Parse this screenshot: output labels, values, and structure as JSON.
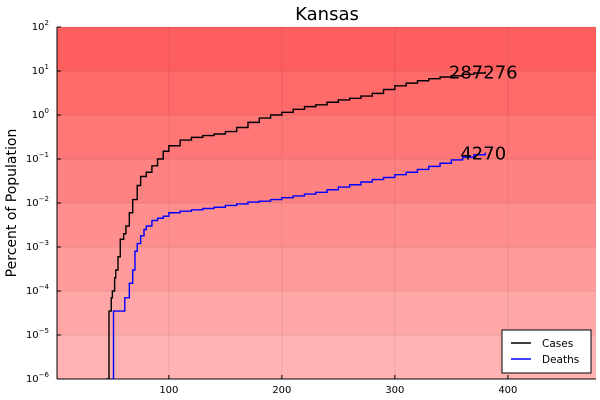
{
  "chart_data": {
    "type": "line",
    "title": "Kansas",
    "xlabel": "",
    "ylabel": "Percent of Population",
    "yscale": "log",
    "xlim": [
      1,
      478
    ],
    "ylim": [
      1e-06,
      100
    ],
    "grid": true,
    "background": "red gradient (darker at top)",
    "x_ticks": [
      100,
      200,
      300,
      400
    ],
    "y_ticks": [
      {
        "value": 1e-06,
        "base": "10",
        "exp": "−6"
      },
      {
        "value": 1e-05,
        "base": "10",
        "exp": "−5"
      },
      {
        "value": 0.0001,
        "base": "10",
        "exp": "−4"
      },
      {
        "value": 0.001,
        "base": "10",
        "exp": "−3"
      },
      {
        "value": 0.01,
        "base": "10",
        "exp": "−2"
      },
      {
        "value": 0.1,
        "base": "10",
        "exp": "−1"
      },
      {
        "value": 1,
        "base": "10",
        "exp": "0"
      },
      {
        "value": 10,
        "base": "10",
        "exp": "1"
      },
      {
        "value": 100,
        "base": "10",
        "exp": "2"
      }
    ],
    "legend": {
      "placement": "bottom-right",
      "entries": [
        "Cases",
        "Deaths"
      ]
    },
    "series": [
      {
        "name": "Cases",
        "color": "#000000",
        "end_label": "287276",
        "x": [
          45,
          47,
          48,
          49,
          50,
          52,
          53,
          55,
          57,
          60,
          62,
          65,
          68,
          72,
          75,
          80,
          85,
          90,
          95,
          100,
          110,
          120,
          130,
          140,
          150,
          160,
          170,
          180,
          190,
          200,
          210,
          220,
          230,
          240,
          250,
          260,
          270,
          280,
          290,
          300,
          310,
          320,
          330,
          340,
          350,
          360,
          370,
          380
        ],
        "y": [
          1e-06,
          3.5e-05,
          3.5e-05,
          7e-05,
          0.0001,
          0.0002,
          0.0003,
          0.0006,
          0.0015,
          0.002,
          0.003,
          0.006,
          0.012,
          0.025,
          0.04,
          0.05,
          0.07,
          0.1,
          0.15,
          0.2,
          0.27,
          0.31,
          0.34,
          0.37,
          0.42,
          0.52,
          0.68,
          0.85,
          1.0,
          1.15,
          1.35,
          1.55,
          1.7,
          1.95,
          2.2,
          2.4,
          2.7,
          3.1,
          3.8,
          4.6,
          5.3,
          6.0,
          6.7,
          7.3,
          7.8,
          8.4,
          9.0,
          9.7
        ]
      },
      {
        "name": "Deaths",
        "color": "#0000ff",
        "end_label": "4270",
        "x": [
          50,
          51,
          52,
          60,
          61,
          62,
          65,
          68,
          70,
          72,
          75,
          78,
          80,
          85,
          90,
          95,
          100,
          110,
          120,
          130,
          140,
          150,
          160,
          170,
          180,
          190,
          200,
          210,
          220,
          230,
          240,
          250,
          260,
          270,
          280,
          290,
          300,
          310,
          320,
          330,
          340,
          350,
          360,
          370,
          380
        ],
        "y": [
          1e-06,
          3.5e-05,
          3.5e-05,
          3.5e-05,
          7e-05,
          7e-05,
          0.00015,
          0.0003,
          0.0008,
          0.0012,
          0.0018,
          0.0025,
          0.003,
          0.004,
          0.0045,
          0.005,
          0.006,
          0.0065,
          0.007,
          0.0075,
          0.008,
          0.0088,
          0.0095,
          0.0105,
          0.011,
          0.012,
          0.0132,
          0.0145,
          0.016,
          0.0175,
          0.02,
          0.023,
          0.026,
          0.03,
          0.034,
          0.038,
          0.044,
          0.05,
          0.058,
          0.068,
          0.08,
          0.095,
          0.11,
          0.125,
          0.14
        ]
      }
    ]
  }
}
